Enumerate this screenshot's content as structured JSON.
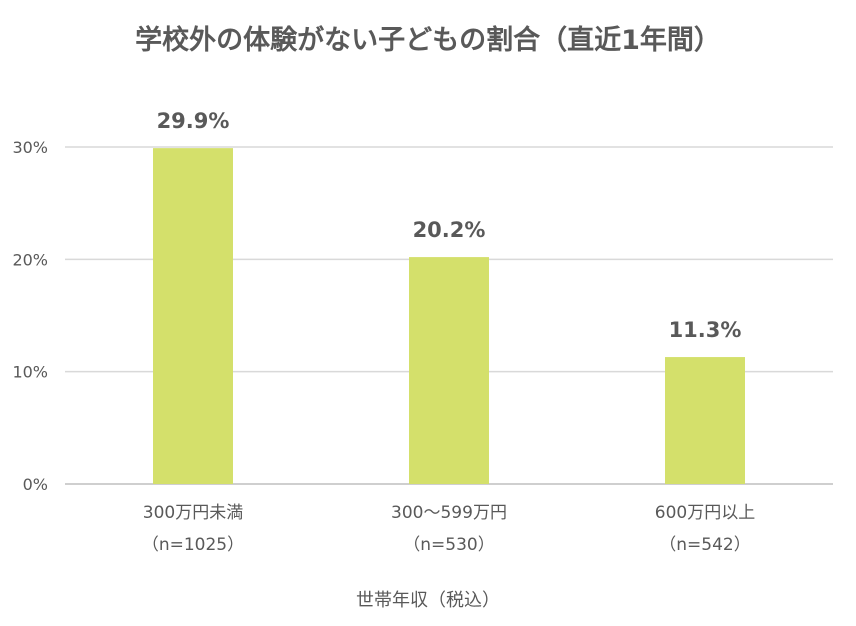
{
  "chart_data": {
    "type": "bar",
    "title": "学校外の体験がない子どもの割合（直近1年間）",
    "categories": [
      {
        "label": "300万円未満",
        "sample": "（n=1025）"
      },
      {
        "label": "300～599万円",
        "sample": "（n=530）"
      },
      {
        "label": "600万円以上",
        "sample": "（n=542）"
      }
    ],
    "values": [
      29.9,
      20.2,
      11.3
    ],
    "data_labels": [
      "29.9%",
      "20.2%",
      "11.3%"
    ],
    "xlabel": "世帯年収（税込）",
    "ylabel": "",
    "ylim": [
      0,
      30
    ],
    "yticks": [
      {
        "value": 0,
        "label": "0%"
      },
      {
        "value": 10,
        "label": "10%"
      },
      {
        "value": 20,
        "label": "20%"
      },
      {
        "value": 30,
        "label": "30%"
      }
    ],
    "grid": true,
    "bar_color": "#d4e06b",
    "grid_color": "#d9d9d9"
  }
}
